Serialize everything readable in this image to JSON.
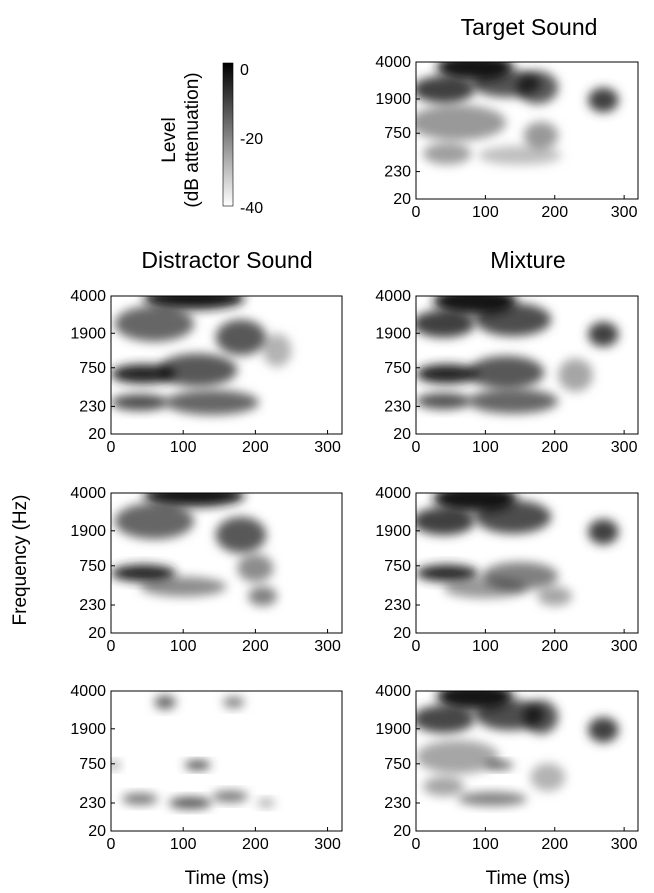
{
  "figure": {
    "column_titles": {
      "target": "Target Sound",
      "distractor": "Distractor Sound",
      "mixture": "Mixture"
    },
    "y_axis_label": "Frequency (Hz)",
    "x_axis_label": "Time (ms)",
    "colorbar": {
      "title_line1": "Level",
      "title_line2": "(dB attenuation)",
      "ticks": [
        "0",
        "-20",
        "-40"
      ],
      "range": [
        -40,
        0
      ],
      "color_low": "#ffffff",
      "color_high": "#000000"
    }
  },
  "chart_data": [
    {
      "id": "target",
      "type": "heatmap",
      "title": "Target Sound",
      "xlabel": "",
      "ylabel": "",
      "x_ticks": [
        "0",
        "100",
        "200",
        "300"
      ],
      "y_ticks": [
        "20",
        "230",
        "750",
        "1900",
        "4000"
      ],
      "xlim": [
        0,
        320
      ],
      "yscale": "log-like (spectrogram)",
      "blobs": [
        {
          "t": 85,
          "f": 3600,
          "dt": 55,
          "df": 0.1,
          "level": -4
        },
        {
          "t": 40,
          "f": 2300,
          "dt": 45,
          "df": 0.1,
          "level": -10
        },
        {
          "t": 130,
          "f": 2600,
          "dt": 50,
          "df": 0.1,
          "level": -13
        },
        {
          "t": 175,
          "f": 2400,
          "dt": 30,
          "df": 0.12,
          "level": -14
        },
        {
          "t": 270,
          "f": 1850,
          "dt": 22,
          "df": 0.09,
          "level": -10
        },
        {
          "t": 60,
          "f": 1000,
          "dt": 70,
          "df": 0.13,
          "level": -24
        },
        {
          "t": 180,
          "f": 700,
          "dt": 25,
          "df": 0.1,
          "level": -24
        },
        {
          "t": 45,
          "f": 400,
          "dt": 35,
          "df": 0.08,
          "level": -25
        },
        {
          "t": 150,
          "f": 380,
          "dt": 60,
          "df": 0.07,
          "level": -30
        }
      ]
    },
    {
      "id": "distractor-1",
      "type": "heatmap",
      "title": "Distractor Sound",
      "x_ticks": [
        "0",
        "100",
        "200",
        "300"
      ],
      "y_ticks": [
        "20",
        "230",
        "750",
        "1900",
        "4000"
      ],
      "xlim": [
        0,
        320
      ],
      "blobs": [
        {
          "t": 115,
          "f": 3800,
          "dt": 70,
          "df": 0.08,
          "level": -4
        },
        {
          "t": 60,
          "f": 2300,
          "dt": 55,
          "df": 0.13,
          "level": -16
        },
        {
          "t": 180,
          "f": 1700,
          "dt": 35,
          "df": 0.13,
          "level": -14
        },
        {
          "t": 45,
          "f": 620,
          "dt": 45,
          "df": 0.07,
          "level": -5
        },
        {
          "t": 120,
          "f": 700,
          "dt": 55,
          "df": 0.12,
          "level": -14
        },
        {
          "t": 40,
          "f": 260,
          "dt": 40,
          "df": 0.06,
          "level": -12
        },
        {
          "t": 140,
          "f": 260,
          "dt": 65,
          "df": 0.09,
          "level": -16
        },
        {
          "t": 230,
          "f": 1200,
          "dt": 20,
          "df": 0.12,
          "level": -28
        }
      ]
    },
    {
      "id": "mixture-1",
      "type": "heatmap",
      "title": "Mixture",
      "x_ticks": [
        "0",
        "100",
        "200",
        "300"
      ],
      "y_ticks": [
        "20",
        "230",
        "750",
        "1900",
        "4000"
      ],
      "xlim": [
        0,
        320
      ],
      "blobs": [
        {
          "t": 85,
          "f": 3600,
          "dt": 60,
          "df": 0.1,
          "level": -3
        },
        {
          "t": 40,
          "f": 2300,
          "dt": 45,
          "df": 0.1,
          "level": -10
        },
        {
          "t": 140,
          "f": 2500,
          "dt": 55,
          "df": 0.12,
          "level": -12
        },
        {
          "t": 270,
          "f": 1850,
          "dt": 22,
          "df": 0.09,
          "level": -10
        },
        {
          "t": 45,
          "f": 620,
          "dt": 45,
          "df": 0.07,
          "level": -5
        },
        {
          "t": 130,
          "f": 650,
          "dt": 55,
          "df": 0.12,
          "level": -14
        },
        {
          "t": 40,
          "f": 270,
          "dt": 40,
          "df": 0.06,
          "level": -13
        },
        {
          "t": 140,
          "f": 270,
          "dt": 65,
          "df": 0.09,
          "level": -16
        },
        {
          "t": 230,
          "f": 600,
          "dt": 25,
          "df": 0.12,
          "level": -26
        }
      ]
    },
    {
      "id": "distractor-2",
      "type": "heatmap",
      "title": "",
      "x_ticks": [
        "0",
        "100",
        "200",
        "300"
      ],
      "y_ticks": [
        "20",
        "230",
        "750",
        "1900",
        "4000"
      ],
      "xlim": [
        0,
        320
      ],
      "blobs": [
        {
          "t": 115,
          "f": 3800,
          "dt": 70,
          "df": 0.08,
          "level": -4
        },
        {
          "t": 60,
          "f": 2300,
          "dt": 55,
          "df": 0.13,
          "level": -16
        },
        {
          "t": 180,
          "f": 1700,
          "dt": 35,
          "df": 0.13,
          "level": -14
        },
        {
          "t": 45,
          "f": 600,
          "dt": 45,
          "df": 0.06,
          "level": -5
        },
        {
          "t": 200,
          "f": 700,
          "dt": 25,
          "df": 0.1,
          "level": -22
        },
        {
          "t": 210,
          "f": 300,
          "dt": 20,
          "df": 0.07,
          "level": -20
        },
        {
          "t": 100,
          "f": 400,
          "dt": 60,
          "df": 0.07,
          "level": -22
        }
      ]
    },
    {
      "id": "mixture-2",
      "type": "heatmap",
      "title": "",
      "x_ticks": [
        "0",
        "100",
        "200",
        "300"
      ],
      "y_ticks": [
        "20",
        "230",
        "750",
        "1900",
        "4000"
      ],
      "xlim": [
        0,
        320
      ],
      "blobs": [
        {
          "t": 85,
          "f": 3600,
          "dt": 60,
          "df": 0.1,
          "level": -3
        },
        {
          "t": 40,
          "f": 2300,
          "dt": 45,
          "df": 0.1,
          "level": -10
        },
        {
          "t": 140,
          "f": 2500,
          "dt": 55,
          "df": 0.12,
          "level": -12
        },
        {
          "t": 270,
          "f": 1850,
          "dt": 22,
          "df": 0.09,
          "level": -10
        },
        {
          "t": 45,
          "f": 600,
          "dt": 45,
          "df": 0.06,
          "level": -6
        },
        {
          "t": 150,
          "f": 550,
          "dt": 55,
          "df": 0.1,
          "level": -20
        },
        {
          "t": 100,
          "f": 380,
          "dt": 60,
          "df": 0.07,
          "level": -24
        },
        {
          "t": 200,
          "f": 300,
          "dt": 25,
          "df": 0.07,
          "level": -26
        }
      ]
    },
    {
      "id": "distractor-3",
      "type": "heatmap",
      "title": "",
      "x_ticks": [
        "0",
        "100",
        "200",
        "300"
      ],
      "y_ticks": [
        "20",
        "230",
        "750",
        "1900",
        "4000"
      ],
      "xlim": [
        0,
        320
      ],
      "blobs": [
        {
          "t": 75,
          "f": 3200,
          "dt": 15,
          "df": 0.05,
          "level": -16
        },
        {
          "t": 170,
          "f": 3200,
          "dt": 15,
          "df": 0.04,
          "level": -20
        },
        {
          "t": 120,
          "f": 720,
          "dt": 18,
          "df": 0.03,
          "level": -9
        },
        {
          "t": 5,
          "f": 720,
          "dt": 8,
          "df": 0.03,
          "level": -24
        },
        {
          "t": 40,
          "f": 260,
          "dt": 25,
          "df": 0.04,
          "level": -18
        },
        {
          "t": 110,
          "f": 230,
          "dt": 30,
          "df": 0.04,
          "level": -12
        },
        {
          "t": 165,
          "f": 280,
          "dt": 25,
          "df": 0.04,
          "level": -18
        },
        {
          "t": 215,
          "f": 230,
          "dt": 12,
          "df": 0.03,
          "level": -26
        }
      ]
    },
    {
      "id": "mixture-3",
      "type": "heatmap",
      "title": "",
      "x_ticks": [
        "0",
        "100",
        "200",
        "300"
      ],
      "y_ticks": [
        "20",
        "230",
        "750",
        "1900",
        "4000"
      ],
      "xlim": [
        0,
        320
      ],
      "blobs": [
        {
          "t": 85,
          "f": 3600,
          "dt": 55,
          "df": 0.1,
          "level": -4
        },
        {
          "t": 40,
          "f": 2300,
          "dt": 45,
          "df": 0.1,
          "level": -11
        },
        {
          "t": 135,
          "f": 2500,
          "dt": 50,
          "df": 0.11,
          "level": -12
        },
        {
          "t": 180,
          "f": 2400,
          "dt": 25,
          "df": 0.12,
          "level": -13
        },
        {
          "t": 270,
          "f": 1850,
          "dt": 22,
          "df": 0.09,
          "level": -10
        },
        {
          "t": 120,
          "f": 720,
          "dt": 20,
          "df": 0.03,
          "level": -14
        },
        {
          "t": 60,
          "f": 900,
          "dt": 60,
          "df": 0.12,
          "level": -26
        },
        {
          "t": 110,
          "f": 260,
          "dt": 50,
          "df": 0.05,
          "level": -20
        },
        {
          "t": 40,
          "f": 380,
          "dt": 30,
          "df": 0.07,
          "level": -26
        },
        {
          "t": 190,
          "f": 500,
          "dt": 25,
          "df": 0.1,
          "level": -28
        }
      ]
    }
  ]
}
